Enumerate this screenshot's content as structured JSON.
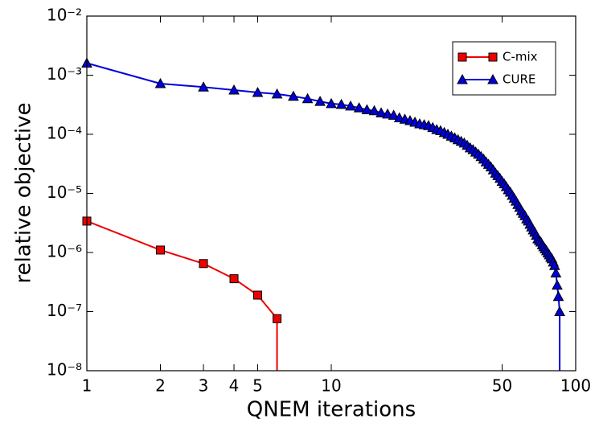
{
  "chart_data": {
    "type": "line",
    "xlabel": "QNEM iterations",
    "ylabel": "relative objective",
    "xscale": "log",
    "yscale": "log",
    "legend": "upper right",
    "xlim": [
      1,
      100
    ],
    "xticks": [
      1,
      2,
      3,
      4,
      5,
      10,
      50,
      100
    ],
    "ylim": [
      1e-08,
      0.01
    ],
    "yticks": [
      {
        "value": 1e-08,
        "label": "10⁻⁸"
      },
      {
        "value": 1e-07,
        "label": "10⁻⁷"
      },
      {
        "value": 1e-06,
        "label": "10⁻⁶"
      },
      {
        "value": 1e-05,
        "label": "10⁻⁵"
      },
      {
        "value": 0.0001,
        "label": "10⁻⁴"
      },
      {
        "value": 0.001,
        "label": "10⁻³"
      },
      {
        "value": 0.01,
        "label": "10⁻²"
      }
    ],
    "series": [
      {
        "name": "C-mix",
        "color": "#ee0000",
        "marker": "square",
        "x": [
          1,
          2,
          3,
          4,
          5,
          6,
          7
        ],
        "values": [
          3.4e-06,
          1.1e-06,
          6.5e-07,
          3.6e-07,
          1.9e-07,
          7.6e-08,
          0
        ]
      },
      {
        "name": "CURE",
        "color": "#0000dd",
        "marker": "triangle",
        "x": [
          1,
          2,
          3,
          4,
          5,
          6,
          7,
          8,
          9,
          10,
          11,
          12,
          13,
          14,
          15,
          16,
          17,
          18,
          19,
          20,
          21,
          22,
          23,
          24,
          25,
          26,
          27,
          28,
          29,
          30,
          31,
          32,
          33,
          34,
          35,
          36,
          37,
          38,
          39,
          40,
          41,
          42,
          43,
          44,
          45,
          46,
          47,
          48,
          49,
          50,
          51,
          52,
          53,
          54,
          55,
          56,
          57,
          58,
          59,
          60,
          61,
          62,
          63,
          64,
          65,
          66,
          67,
          68,
          69,
          70,
          71,
          72,
          73,
          74,
          75,
          76,
          77,
          78,
          79,
          80,
          81,
          82,
          83,
          84,
          85,
          86,
          87
        ],
        "values": [
          0.0016,
          0.00072,
          0.00063,
          0.00056,
          0.00051,
          0.00048,
          0.00044,
          0.0004,
          0.00036,
          0.00033,
          0.00032,
          0.0003,
          0.00028,
          0.00026,
          0.00025,
          0.00023,
          0.00022,
          0.00021,
          0.00019,
          0.00018,
          0.00017,
          0.00016,
          0.00015,
          0.000145,
          0.00014,
          0.00013,
          0.00012,
          0.000115,
          0.000107,
          0.0001,
          9.3e-05,
          8.7e-05,
          8.1e-05,
          7.6e-05,
          7.1e-05,
          6.5e-05,
          5.9e-05,
          5.5e-05,
          5e-05,
          4.6e-05,
          4.2e-05,
          3.8e-05,
          3.4e-05,
          3.1e-05,
          2.8e-05,
          2.5e-05,
          2.2e-05,
          2e-05,
          1.8e-05,
          1.6e-05,
          1.45e-05,
          1.3e-05,
          1.15e-05,
          1.05e-05,
          9.3e-06,
          8.3e-06,
          7.4e-06,
          6.5e-06,
          5.8e-06,
          5.1e-06,
          4.6e-06,
          4.2e-06,
          3.7e-06,
          3.4e-06,
          3e-06,
          2.7e-06,
          2.4e-06,
          2.2e-06,
          1.95e-06,
          1.7e-06,
          1.6e-06,
          1.5e-06,
          1.35e-06,
          1.25e-06,
          1.15e-06,
          1.07e-06,
          9.8e-07,
          9.1e-07,
          8.3e-07,
          7.8e-07,
          6.9e-07,
          6e-07,
          4.5e-07,
          2.8e-07,
          1.8e-07,
          1e-07,
          0
        ]
      }
    ]
  }
}
